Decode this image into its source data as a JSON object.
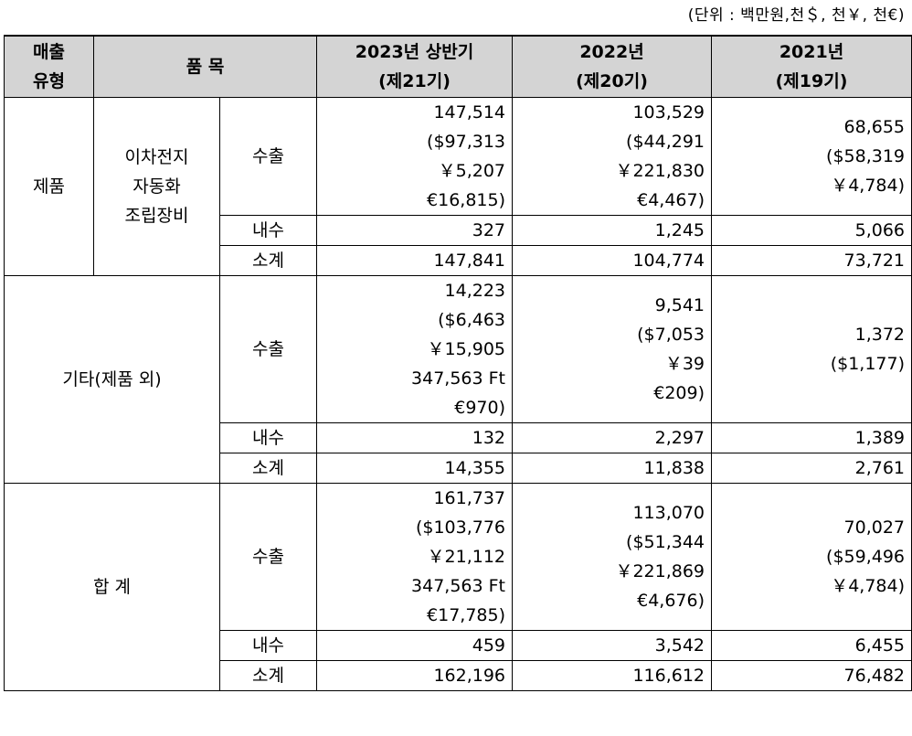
{
  "unit_note": "(단위 : 백만원,천＄, 천￥, 천€)",
  "header": {
    "type": "매출\n유형",
    "item": "품 목",
    "col1": "2023년 상반기\n(제21기)",
    "col2": "2022년\n(제20기)",
    "col3": "2021년\n(제19기)"
  },
  "groups": [
    {
      "type": "제품",
      "item": "이차전지\n자동화\n조립장비",
      "rows": [
        {
          "label": "수출",
          "v1": "147,514\n($97,313\n￥5,207\n€16,815)",
          "v2": "103,529\n($44,291\n￥221,830\n€4,467)",
          "v3": "68,655\n($58,319\n￥4,784)"
        },
        {
          "label": "내수",
          "v1": "327",
          "v2": "1,245",
          "v3": "5,066"
        },
        {
          "label": "소계",
          "v1": "147,841",
          "v2": "104,774",
          "v3": "73,721"
        }
      ]
    },
    {
      "type": "기타(제품 외)",
      "rows": [
        {
          "label": "수출",
          "v1": "14,223\n($6,463\n￥15,905\n347,563 Ft\n€970)",
          "v2": "9,541\n($7,053\n￥39\n€209)",
          "v3": "1,372\n($1,177)"
        },
        {
          "label": "내수",
          "v1": "132",
          "v2": "2,297",
          "v3": "1,389"
        },
        {
          "label": "소계",
          "v1": "14,355",
          "v2": "11,838",
          "v3": "2,761"
        }
      ]
    },
    {
      "type": "합 계",
      "rows": [
        {
          "label": "수출",
          "v1": "161,737\n($103,776\n￥21,112\n347,563 Ft\n€17,785)",
          "v2": "113,070\n($51,344\n￥221,869\n€4,676)",
          "v3": "70,027\n($59,496\n￥4,784)"
        },
        {
          "label": "내수",
          "v1": "459",
          "v2": "3,542",
          "v3": "6,455"
        },
        {
          "label": "소계",
          "v1": "162,196",
          "v2": "116,612",
          "v3": "76,482"
        }
      ]
    }
  ]
}
